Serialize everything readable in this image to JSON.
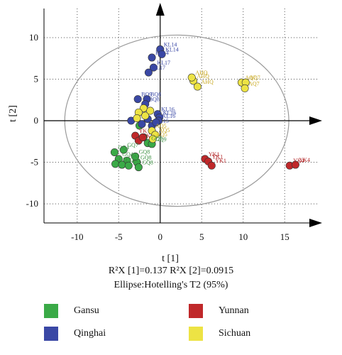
{
  "chart_data": {
    "type": "scatter",
    "xlabel": "t [1]",
    "ylabel": "t [2]",
    "xlim": [
      -14,
      19
    ],
    "ylim": [
      -12.3,
      13.5
    ],
    "xticks": [
      -10,
      -5,
      0,
      5,
      10,
      15
    ],
    "yticks": [
      -10,
      -5,
      0,
      5,
      10
    ],
    "grid": "dotted",
    "ellipse": {
      "cx": 2,
      "cy": 0,
      "rx": 13.5,
      "ry": 10.3
    },
    "series": [
      {
        "name": "Gansu",
        "color": "#3aaa47",
        "points": [
          {
            "x": -5.5,
            "y": -3.8,
            "label": "GQ4"
          },
          {
            "x": -5.0,
            "y": -4.6,
            "label": "GQ4"
          },
          {
            "x": -4.4,
            "y": -3.5,
            "label": "GQ7"
          },
          {
            "x": -4.0,
            "y": -4.8,
            "label": "GQ"
          },
          {
            "x": -5.4,
            "y": -5.2,
            "label": "GQ"
          },
          {
            "x": -4.6,
            "y": -5.3,
            "label": "GQ"
          },
          {
            "x": -3.8,
            "y": -5.4,
            "label": "GQ"
          },
          {
            "x": -2.8,
            "y": -5.0,
            "label": "GQ8"
          },
          {
            "x": -2.6,
            "y": -5.6,
            "label": "GQ8"
          },
          {
            "x": -3.0,
            "y": -4.3,
            "label": "GQ8"
          },
          {
            "x": -1.5,
            "y": -2.7,
            "label": "GQ9"
          },
          {
            "x": -1.0,
            "y": -2.8,
            "label": "GQ9"
          },
          {
            "x": -2.0,
            "y": -2.0,
            "label": ""
          },
          {
            "x": -2.5,
            "y": -0.6,
            "label": ""
          }
        ]
      },
      {
        "name": "Qinghai",
        "color": "#3a48a5",
        "points": [
          {
            "x": 0.0,
            "y": 8.6,
            "label": "KL14"
          },
          {
            "x": 0.2,
            "y": 8.0,
            "label": "KL14"
          },
          {
            "x": -1.0,
            "y": 7.6,
            "label": "KL14"
          },
          {
            "x": -0.8,
            "y": 6.4,
            "label": "KL17"
          },
          {
            "x": -1.4,
            "y": 5.8,
            "label": "KL17"
          },
          {
            "x": -2.7,
            "y": 2.6,
            "label": "BQ9"
          },
          {
            "x": -1.6,
            "y": 2.6,
            "label": "BQ8"
          },
          {
            "x": -1.8,
            "y": 2.0,
            "label": "BQ8"
          },
          {
            "x": -0.3,
            "y": 0.8,
            "label": "KL16"
          },
          {
            "x": -0.1,
            "y": 0.4,
            "label": "KL16"
          },
          {
            "x": -0.2,
            "y": 0.0,
            "label": "KL16"
          },
          {
            "x": -1.5,
            "y": 0.2,
            "label": ""
          },
          {
            "x": -3.5,
            "y": 0.0,
            "label": ""
          },
          {
            "x": -2.2,
            "y": -0.4,
            "label": ""
          },
          {
            "x": -1.0,
            "y": -0.6,
            "label": "KL15"
          },
          {
            "x": -0.5,
            "y": -0.2,
            "label": ""
          }
        ]
      },
      {
        "name": "Yunnan",
        "color": "#c0282a",
        "points": [
          {
            "x": -3.0,
            "y": -1.8,
            "label": "YK"
          },
          {
            "x": -2.6,
            "y": -2.4,
            "label": "YK"
          },
          {
            "x": -2.1,
            "y": -2.0,
            "label": ""
          },
          {
            "x": 5.4,
            "y": -4.6,
            "label": "YK1"
          },
          {
            "x": 5.8,
            "y": -4.9,
            "label": "YK1"
          },
          {
            "x": 6.2,
            "y": -5.4,
            "label": "YK1"
          },
          {
            "x": 15.6,
            "y": -5.4,
            "label": "YK4"
          },
          {
            "x": 16.3,
            "y": -5.3,
            "label": "YK4"
          }
        ]
      },
      {
        "name": "Sichuan",
        "color": "#ede344",
        "points": [
          {
            "x": 4.0,
            "y": 4.8,
            "label": "AHQ"
          },
          {
            "x": 4.5,
            "y": 4.1,
            "label": "AHQ"
          },
          {
            "x": 3.8,
            "y": 5.2,
            "label": "AHQ"
          },
          {
            "x": 9.8,
            "y": 4.6,
            "label": "AQ7"
          },
          {
            "x": 10.3,
            "y": 4.6,
            "label": "AQ7"
          },
          {
            "x": 10.2,
            "y": 3.9,
            "label": "AQ7"
          },
          {
            "x": -2.0,
            "y": 1.5,
            "label": ""
          },
          {
            "x": -2.6,
            "y": 1.0,
            "label": ""
          },
          {
            "x": -1.8,
            "y": 0.6,
            "label": ""
          },
          {
            "x": -2.8,
            "y": 0.3,
            "label": ""
          },
          {
            "x": -1.2,
            "y": 1.2,
            "label": ""
          },
          {
            "x": -1.0,
            "y": -1.2,
            "label": "AQ5"
          },
          {
            "x": -0.6,
            "y": -1.7,
            "label": "AQ5"
          },
          {
            "x": -0.9,
            "y": -2.2,
            "label": "AQ5"
          }
        ]
      }
    ]
  },
  "footnote": {
    "line1": "R²X [1]=0.137 R²X [2]=0.0915",
    "line2": "Ellipse:Hotelling's T2 (95%)"
  },
  "legend": [
    {
      "label": "Gansu",
      "color": "#3aaa47"
    },
    {
      "label": "Yunnan",
      "color": "#c0282a"
    },
    {
      "label": "Qinghai",
      "color": "#3a48a5"
    },
    {
      "label": "Sichuan",
      "color": "#ede344"
    }
  ]
}
